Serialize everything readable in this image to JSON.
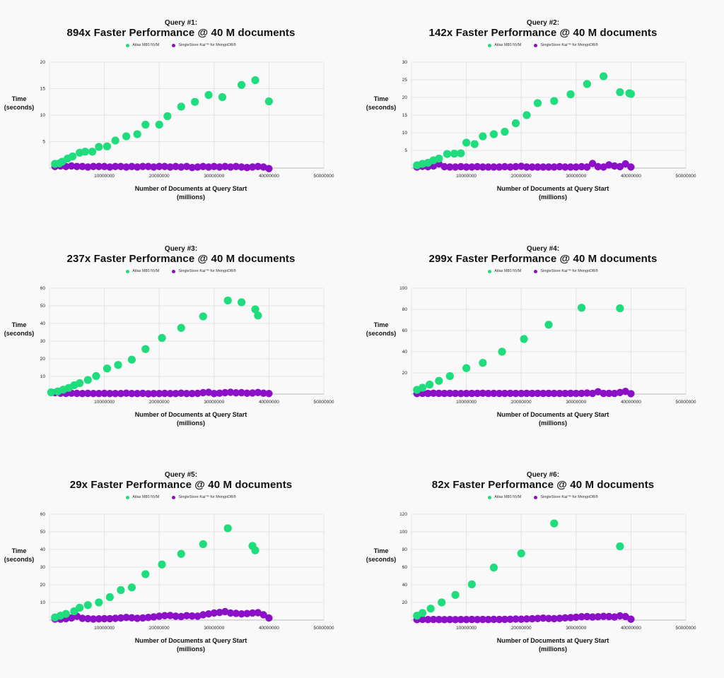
{
  "colors": {
    "atlas": "#1fdc7c",
    "kai": "#8c10c8",
    "grid": "#e2e2e2",
    "axis": "#bbbbbb"
  },
  "chart_data": [
    {
      "type": "scatter",
      "query_label": "Query #1:",
      "title": "894x Faster Performance @ 40 M documents",
      "ylabel": [
        "Time",
        "(seconds)"
      ],
      "xlabel": [
        "Number of Documents at Query Start",
        "(millions)"
      ],
      "xlim": [
        0,
        50000000
      ],
      "ylim": [
        0,
        20
      ],
      "xticks": [
        "10000000",
        "20000000",
        "30000000",
        "40000000",
        "50000000"
      ],
      "yticks": [
        "5",
        "10",
        "15",
        "20"
      ],
      "series": [
        {
          "name": "Atlas M80 NVM",
          "x": [
            1000000,
            1800000,
            2300000,
            3300000,
            4200000,
            5500000,
            6500000,
            7800000,
            9000000,
            10500000,
            12000000,
            14000000,
            16000000,
            17500000,
            20000000,
            21500000,
            24000000,
            26500000,
            29000000,
            31500000,
            35000000,
            37500000,
            40000000
          ],
          "y": [
            0.8,
            0.9,
            1.2,
            1.8,
            2.2,
            2.9,
            3.1,
            3.1,
            4.0,
            4.1,
            5.2,
            6.0,
            6.4,
            8.2,
            8.2,
            9.8,
            11.6,
            12.5,
            13.8,
            13.4,
            15.7,
            16.6,
            12.6
          ]
        },
        {
          "name": "SingleStore Kai™ for MongoDB®",
          "x": [
            1000000,
            2000000,
            3000000,
            4000000,
            5000000,
            6000000,
            7000000,
            8000000,
            9000000,
            10000000,
            11000000,
            12000000,
            13000000,
            14000000,
            15000000,
            16000000,
            17000000,
            18000000,
            19000000,
            20000000,
            21000000,
            22000000,
            23000000,
            24000000,
            25000000,
            26000000,
            27000000,
            28000000,
            29000000,
            30000000,
            31000000,
            32000000,
            33000000,
            34000000,
            35000000,
            36000000,
            37000000,
            38000000,
            39000000,
            40000000
          ],
          "y": [
            0.3,
            0.4,
            0.3,
            0.4,
            0.3,
            0.3,
            0.2,
            0.3,
            0.3,
            0.3,
            0.2,
            0.3,
            0.3,
            0.2,
            0.3,
            0.2,
            0.3,
            0.3,
            0.2,
            0.3,
            0.3,
            0.2,
            0.3,
            0.2,
            0.3,
            0.1,
            0.2,
            0.3,
            0.2,
            0.3,
            0.2,
            0.3,
            0.2,
            0.3,
            0.2,
            0.1,
            0.2,
            0.3,
            0.2,
            -0.1
          ]
        }
      ]
    },
    {
      "type": "scatter",
      "query_label": "Query #2:",
      "title": "142x Faster Performance @ 40 M documents",
      "ylabel": [
        "Time",
        "(seconds)"
      ],
      "xlabel": [
        "Number of Documents at Query Start",
        "(millions)"
      ],
      "xlim": [
        0,
        50000000
      ],
      "ylim": [
        0,
        30
      ],
      "xticks": [
        "10000000",
        "20000000",
        "30000000",
        "40000000",
        "50000000"
      ],
      "yticks": [
        "5",
        "10",
        "15",
        "20",
        "25",
        "30"
      ],
      "series": [
        {
          "name": "Atlas M80 NVM",
          "x": [
            1000000,
            2000000,
            3000000,
            4000000,
            5000000,
            6500000,
            7800000,
            9000000,
            10000000,
            11500000,
            13000000,
            15000000,
            17000000,
            19000000,
            21000000,
            23000000,
            26000000,
            29000000,
            32000000,
            35000000,
            38000000,
            39700000,
            40000000
          ],
          "y": [
            0.8,
            1.2,
            1.5,
            2.2,
            2.7,
            4.0,
            4.1,
            4.2,
            7.2,
            6.8,
            9.0,
            9.6,
            10.3,
            12.7,
            15.0,
            18.4,
            19.0,
            20.9,
            23.8,
            26.0,
            21.5,
            21.2,
            21.0
          ]
        },
        {
          "name": "SingleStore Kai™ for MongoDB®",
          "x": [
            1000000,
            2000000,
            3000000,
            4000000,
            5000000,
            6000000,
            7000000,
            8000000,
            9000000,
            10000000,
            11000000,
            12000000,
            13000000,
            14000000,
            15000000,
            16000000,
            17000000,
            18000000,
            19000000,
            20000000,
            21000000,
            22000000,
            23000000,
            24000000,
            25000000,
            26000000,
            27000000,
            28000000,
            29000000,
            30000000,
            31000000,
            32000000,
            33000000,
            34000000,
            35000000,
            36000000,
            37000000,
            38000000,
            39000000,
            40000000
          ],
          "y": [
            0.3,
            0.5,
            0.4,
            0.6,
            1.2,
            0.4,
            0.3,
            0.3,
            0.4,
            0.3,
            0.3,
            0.4,
            0.3,
            0.3,
            0.3,
            0.3,
            0.4,
            0.3,
            0.4,
            0.5,
            0.3,
            0.3,
            0.3,
            0.3,
            0.3,
            0.3,
            0.4,
            0.3,
            0.3,
            0.3,
            0.4,
            0.3,
            1.3,
            0.4,
            0.3,
            0.9,
            0.6,
            0.4,
            1.2,
            0.3
          ]
        }
      ]
    },
    {
      "type": "scatter",
      "query_label": "Query #3:",
      "title": "237x Faster Performance @ 40 M documents",
      "ylabel": [
        "Time",
        "(seconds)"
      ],
      "xlabel": [
        "Number of Documents at Query Start",
        "(millions)"
      ],
      "xlim": [
        0,
        50000000
      ],
      "ylim": [
        0,
        60
      ],
      "xticks": [
        "10000000",
        "20000000",
        "30000000",
        "40000000",
        "50000000"
      ],
      "yticks": [
        "10",
        "20",
        "30",
        "40",
        "50",
        "60"
      ],
      "series": [
        {
          "name": "Atlas M80 NVM",
          "x": [
            300000,
            1500000,
            2500000,
            3500000,
            4500000,
            5500000,
            7000000,
            8500000,
            10500000,
            12500000,
            15000000,
            17500000,
            20500000,
            24000000,
            28000000,
            32500000,
            35000000,
            37500000,
            38000000
          ],
          "y": [
            1.0,
            1.5,
            2.5,
            3.5,
            5.0,
            6.2,
            8.0,
            10.2,
            14.5,
            16.5,
            19.5,
            25.5,
            31.8,
            37.5,
            44.0,
            53.0,
            52.0,
            48.0,
            44.5
          ]
        },
        {
          "name": "SingleStore Kai™ for MongoDB®",
          "x": [
            1000000,
            2000000,
            3000000,
            4000000,
            5000000,
            6000000,
            7000000,
            8000000,
            9000000,
            10000000,
            11000000,
            12000000,
            13000000,
            14000000,
            15000000,
            16000000,
            17000000,
            18000000,
            19000000,
            20000000,
            21000000,
            22000000,
            23000000,
            24000000,
            25000000,
            26000000,
            27000000,
            28000000,
            29000000,
            30000000,
            31000000,
            32000000,
            33000000,
            34000000,
            35000000,
            36000000,
            37000000,
            38000000,
            39000000,
            40000000
          ],
          "y": [
            0.8,
            0.5,
            0.4,
            0.5,
            0.4,
            0.3,
            0.4,
            0.3,
            0.3,
            0.4,
            0.3,
            0.3,
            0.3,
            0.5,
            0.3,
            0.3,
            0.4,
            0.2,
            0.3,
            0.3,
            0.4,
            0.3,
            0.3,
            0.5,
            0.3,
            0.3,
            0.4,
            0.8,
            1.0,
            0.3,
            0.5,
            0.8,
            1.0,
            0.7,
            0.8,
            0.5,
            0.6,
            0.9,
            0.5,
            0.3
          ]
        }
      ]
    },
    {
      "type": "scatter",
      "query_label": "Query #4:",
      "title": "299x Faster Performance @ 40 M documents",
      "ylabel": [
        "Time",
        "(seconds)"
      ],
      "xlabel": [
        "Number of Documents at Query Start",
        "(millions)"
      ],
      "xlim": [
        0,
        50000000
      ],
      "ylim": [
        0,
        100
      ],
      "xticks": [
        "10000000",
        "20000000",
        "30000000",
        "40000000",
        "50000000"
      ],
      "yticks": [
        "20",
        "40",
        "60",
        "80",
        "100"
      ],
      "series": [
        {
          "name": "Atlas M80 NVM",
          "x": [
            1000000,
            2000000,
            3300000,
            5000000,
            7000000,
            10000000,
            13000000,
            16500000,
            20500000,
            25000000,
            31000000,
            38000000
          ],
          "y": [
            4.0,
            6.0,
            9.0,
            12.5,
            17.0,
            24.5,
            29.5,
            40.0,
            52.0,
            65.5,
            81.5,
            81.0
          ]
        },
        {
          "name": "SingleStore Kai™ for MongoDB®",
          "x": [
            1000000,
            2000000,
            3000000,
            4000000,
            5000000,
            6000000,
            7000000,
            8000000,
            9000000,
            10000000,
            11000000,
            12000000,
            13000000,
            14000000,
            15000000,
            16000000,
            17000000,
            18000000,
            19000000,
            20000000,
            21000000,
            22000000,
            23000000,
            24000000,
            25000000,
            26000000,
            27000000,
            28000000,
            29000000,
            30000000,
            31000000,
            32000000,
            33000000,
            34000000,
            35000000,
            36000000,
            37000000,
            38000000,
            39000000,
            40000000
          ],
          "y": [
            0.5,
            0.7,
            0.6,
            0.8,
            0.7,
            0.6,
            0.7,
            0.6,
            0.5,
            0.6,
            0.6,
            0.7,
            0.8,
            0.6,
            0.7,
            0.6,
            0.6,
            0.7,
            0.6,
            0.6,
            0.7,
            0.6,
            0.7,
            0.6,
            0.7,
            0.6,
            0.6,
            0.6,
            0.7,
            0.6,
            0.7,
            1.0,
            0.6,
            2.2,
            0.6,
            0.7,
            0.6,
            1.5,
            2.5,
            0.4
          ]
        }
      ]
    },
    {
      "type": "scatter",
      "query_label": "Query #5:",
      "title": "29x Faster Performance @ 40 M documents",
      "ylabel": [
        "Time",
        "(seconds)"
      ],
      "xlabel": [
        "Number of Documents at Query Start",
        "(millions)"
      ],
      "xlim": [
        0,
        50000000
      ],
      "ylim": [
        0,
        60
      ],
      "xticks": [
        "10000000",
        "20000000",
        "30000000",
        "40000000",
        "50000000"
      ],
      "yticks": [
        "10",
        "20",
        "30",
        "40",
        "50",
        "60"
      ],
      "series": [
        {
          "name": "Atlas M80 NVM",
          "x": [
            1000000,
            2000000,
            3000000,
            4500000,
            5500000,
            7000000,
            9000000,
            11000000,
            13000000,
            15000000,
            17500000,
            20500000,
            24000000,
            28000000,
            32500000,
            37000000,
            37500000
          ],
          "y": [
            1.5,
            2.5,
            3.5,
            5.0,
            7.0,
            8.5,
            10.0,
            13.0,
            17.0,
            18.5,
            26.0,
            31.5,
            37.5,
            43.0,
            52.0,
            42.0,
            39.5
          ]
        },
        {
          "name": "SingleStore Kai™ for MongoDB®",
          "x": [
            1000000,
            2000000,
            3000000,
            4000000,
            5000000,
            6000000,
            7000000,
            8000000,
            9000000,
            10000000,
            11000000,
            12000000,
            13000000,
            14000000,
            15000000,
            16000000,
            17000000,
            18000000,
            19000000,
            20000000,
            21000000,
            22000000,
            23000000,
            24000000,
            25000000,
            26000000,
            27000000,
            28000000,
            29000000,
            30000000,
            31000000,
            32000000,
            33000000,
            34000000,
            35000000,
            36000000,
            37000000,
            38000000,
            39000000,
            40000000
          ],
          "y": [
            0.6,
            0.5,
            0.8,
            1.2,
            2.2,
            1.0,
            0.8,
            0.6,
            0.7,
            0.8,
            0.8,
            1.0,
            1.2,
            1.5,
            1.3,
            1.0,
            1.2,
            1.5,
            1.8,
            2.2,
            2.5,
            2.6,
            2.2,
            2.0,
            2.5,
            2.3,
            2.2,
            3.0,
            3.5,
            4.0,
            4.3,
            4.8,
            4.0,
            3.8,
            3.5,
            3.7,
            4.0,
            4.2,
            3.0,
            1.2
          ]
        }
      ]
    },
    {
      "type": "scatter",
      "query_label": "Query #6:",
      "title": "82x Faster Performance @ 40 M documents",
      "ylabel": [
        "Time",
        "(seconds)"
      ],
      "xlabel": [
        "Number of Documents at Query Start",
        "(millions)"
      ],
      "xlim": [
        0,
        50000000
      ],
      "ylim": [
        0,
        120
      ],
      "xticks": [
        "10000000",
        "20000000",
        "30000000",
        "40000000",
        "50000000"
      ],
      "yticks": [
        "20",
        "40",
        "60",
        "80",
        "100",
        "120"
      ],
      "series": [
        {
          "name": "Atlas M80 NVM",
          "x": [
            1000000,
            2000000,
            3500000,
            5500000,
            8000000,
            11000000,
            15000000,
            20000000,
            26000000,
            38000000
          ],
          "y": [
            5.0,
            8.0,
            13.0,
            20.0,
            28.5,
            40.5,
            59.5,
            75.5,
            109.5,
            83.5
          ]
        },
        {
          "name": "SingleStore Kai™ for MongoDB®",
          "x": [
            1000000,
            2000000,
            3000000,
            4000000,
            5000000,
            6000000,
            7000000,
            8000000,
            9000000,
            10000000,
            11000000,
            12000000,
            13000000,
            14000000,
            15000000,
            16000000,
            17000000,
            18000000,
            19000000,
            20000000,
            21000000,
            22000000,
            23000000,
            24000000,
            25000000,
            26000000,
            27000000,
            28000000,
            29000000,
            30000000,
            31000000,
            32000000,
            33000000,
            34000000,
            35000000,
            36000000,
            37000000,
            38000000,
            39000000,
            40000000
          ],
          "y": [
            0.5,
            0.8,
            0.6,
            0.7,
            0.6,
            0.5,
            0.6,
            0.5,
            0.6,
            0.6,
            0.7,
            0.6,
            0.7,
            0.6,
            0.8,
            0.7,
            0.8,
            0.9,
            1.2,
            1.0,
            1.3,
            1.5,
            1.8,
            2.2,
            1.8,
            1.6,
            2.0,
            2.5,
            2.8,
            3.2,
            3.8,
            4.0,
            3.5,
            3.8,
            4.2,
            4.0,
            3.5,
            4.8,
            4.0,
            1.0
          ]
        }
      ]
    }
  ]
}
